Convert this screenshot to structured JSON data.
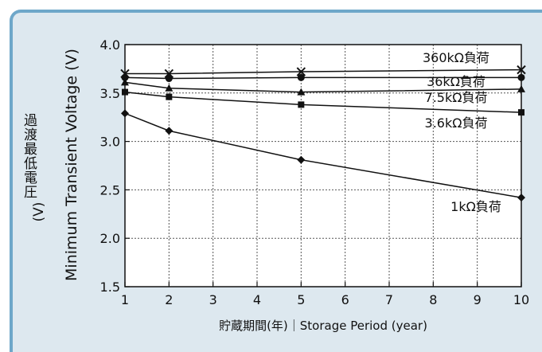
{
  "chart_data": {
    "type": "line",
    "x": [
      1,
      2,
      5,
      10
    ],
    "xticks": [
      1,
      2,
      3,
      4,
      5,
      6,
      7,
      8,
      9,
      10
    ],
    "xlim": [
      1,
      10
    ],
    "ylim": [
      1.5,
      4.0
    ],
    "yticks": [
      "1.5",
      "2.0",
      "2.5",
      "3.0",
      "3.5",
      "4.0"
    ],
    "xlabel": "貯蔵期間(年)｜Storage Period (year)",
    "ylabel_jp": "過渡最低電圧",
    "ylabel_unit": "(V)",
    "ylabel_en": "Minimum Transient Voltage (V)",
    "grid": true,
    "series": [
      {
        "name": "360kΩ負荷",
        "marker": "x",
        "values": [
          3.7,
          3.7,
          3.72,
          3.74
        ]
      },
      {
        "name": "36kΩ負荷",
        "marker": "circle",
        "values": [
          3.66,
          3.65,
          3.66,
          3.66
        ]
      },
      {
        "name": "7.5kΩ負荷",
        "marker": "triangle",
        "values": [
          3.61,
          3.55,
          3.51,
          3.54
        ]
      },
      {
        "name": "3.6kΩ負荷",
        "marker": "square",
        "values": [
          3.51,
          3.46,
          3.38,
          3.3
        ]
      },
      {
        "name": "1kΩ負荷",
        "marker": "diamond",
        "values": [
          3.29,
          3.11,
          2.81,
          2.42
        ]
      }
    ]
  }
}
